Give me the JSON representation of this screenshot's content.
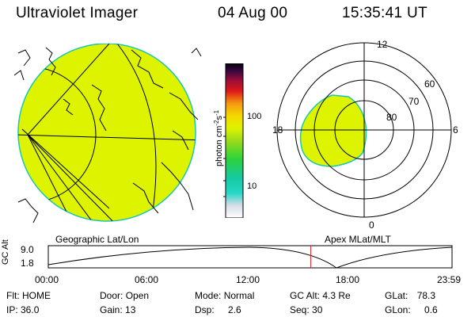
{
  "header": {
    "title": "Ultraviolet Imager",
    "date": "04 Aug 00",
    "time": "15:35:41 UT"
  },
  "colors": {
    "aurora_fill": "#ddf300",
    "limb": "#18c8b0",
    "grid": "#000000",
    "orbit_marker": "#e02020"
  },
  "geo_panel": {
    "label": "Geographic Lat/Lon"
  },
  "polar_panel": {
    "label": "Apex MLat/MLT",
    "mlt_labels": {
      "top": "12",
      "left": "18",
      "right": "6",
      "bottom": "0"
    },
    "mlat_labels": [
      "60",
      "70",
      "80"
    ]
  },
  "colorbar": {
    "unit_label": "photon cm-2s-1",
    "unit_base": "photon cm",
    "unit_exp1": "-2",
    "unit_mid": "s",
    "unit_exp2": "-1",
    "ticks": [
      "100",
      "10"
    ]
  },
  "altitude_plot": {
    "axis_label": "GC Alt",
    "y_ticks": [
      "9.0",
      "1.8"
    ],
    "x_ticks": [
      "00:00",
      "06:00",
      "12:00",
      "18:00",
      "23:59"
    ],
    "current_time_hours": 15.595
  },
  "footer": {
    "filter": "Flt: HOME",
    "ip": "IP: 36.0",
    "door_label": "Door:",
    "door_value": "Open",
    "gain_label": "Gain:",
    "gain_value": "13",
    "mode_label": "Mode:",
    "mode_value": "Normal",
    "dsp_label": "Dsp:",
    "dsp_value": "2.6",
    "gcalt_label": "GC Alt:",
    "gcalt_value": "4.3 Re",
    "seq_label": "Seq:",
    "seq_value": "30",
    "glat_label": "GLat:",
    "glat_value": "78.3",
    "glon_label": "GLon:",
    "glon_value": "0.6"
  }
}
